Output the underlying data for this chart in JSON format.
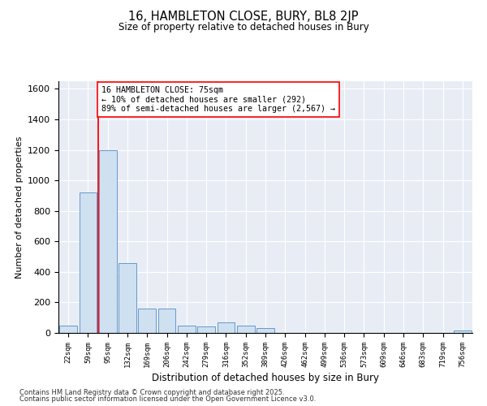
{
  "title_line1": "16, HAMBLETON CLOSE, BURY, BL8 2JP",
  "title_line2": "Size of property relative to detached houses in Bury",
  "xlabel": "Distribution of detached houses by size in Bury",
  "ylabel": "Number of detached properties",
  "bar_color": "#cfe0f0",
  "bar_edge_color": "#6699cc",
  "background_color": "#e8edf5",
  "bins": [
    "22sqm",
    "59sqm",
    "95sqm",
    "132sqm",
    "169sqm",
    "206sqm",
    "242sqm",
    "279sqm",
    "316sqm",
    "352sqm",
    "389sqm",
    "426sqm",
    "462sqm",
    "499sqm",
    "536sqm",
    "573sqm",
    "609sqm",
    "646sqm",
    "683sqm",
    "719sqm",
    "756sqm"
  ],
  "values": [
    50,
    920,
    1200,
    460,
    160,
    160,
    50,
    40,
    70,
    50,
    30,
    0,
    0,
    0,
    0,
    0,
    0,
    0,
    0,
    0,
    15
  ],
  "red_line_x": 1.5,
  "red_line_label": "16 HAMBLETON CLOSE: 75sqm",
  "annotation_line2": "← 10% of detached houses are smaller (292)",
  "annotation_line3": "89% of semi-detached houses are larger (2,567) →",
  "ylim": [
    0,
    1650
  ],
  "yticks": [
    0,
    200,
    400,
    600,
    800,
    1000,
    1200,
    1400,
    1600
  ],
  "footnote1": "Contains HM Land Registry data © Crown copyright and database right 2025.",
  "footnote2": "Contains public sector information licensed under the Open Government Licence v3.0."
}
